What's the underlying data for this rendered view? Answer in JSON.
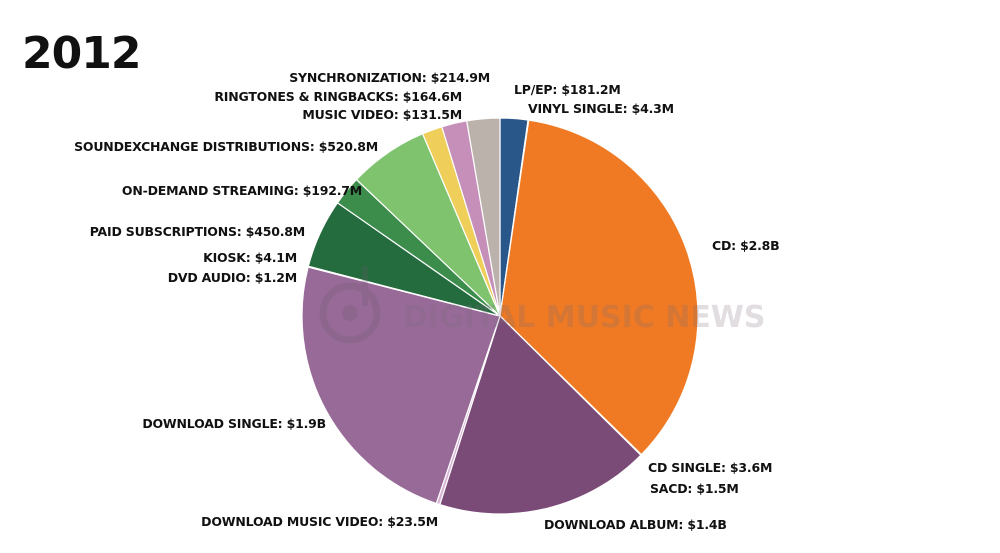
{
  "chart_data": {
    "type": "pie",
    "title": "2012",
    "slices": [
      {
        "label": "LP/EP: $181.2M",
        "value": 181.2,
        "color": "#2a578a"
      },
      {
        "label": "VINYL SINGLE: $4.3M",
        "value": 4.3,
        "color": "#3a74b0"
      },
      {
        "label": "CD: $2.8B",
        "value": 2800,
        "color": "#ef7a23"
      },
      {
        "label": "CD SINGLE: $3.6M",
        "value": 3.6,
        "color": "#d7732c"
      },
      {
        "label": "SACD: $1.5M",
        "value": 1.5,
        "color": "#c4682a"
      },
      {
        "label": "DOWNLOAD ALBUM: $1.4B",
        "value": 1400,
        "color": "#7a4b77"
      },
      {
        "label": "DOWNLOAD MUSIC VIDEO: $23.5M",
        "value": 23.5,
        "color": "#d8b3d6"
      },
      {
        "label": "DOWNLOAD SINGLE: $1.9B",
        "value": 1900,
        "color": "#986a98"
      },
      {
        "label": "DVD AUDIO: $1.2M",
        "value": 1.2,
        "color": "#8c6448"
      },
      {
        "label": "KIOSK: $4.1M",
        "value": 4.1,
        "color": "#9a6a4c"
      },
      {
        "label": "PAID SUBSCRIPTIONS: $450.8M",
        "value": 450.8,
        "color": "#246b3e"
      },
      {
        "label": "ON-DEMAND STREAMING: $192.7M",
        "value": 192.7,
        "color": "#3c8c4c"
      },
      {
        "label": "SOUNDEXCHANGE DISTRIBUTIONS: $520.8M",
        "value": 520.8,
        "color": "#7fc36e"
      },
      {
        "label": "MUSIC VIDEO: $131.5M",
        "value": 131.5,
        "color": "#efcf5a"
      },
      {
        "label": "RINGTONES & RINGBACKS: $164.6M",
        "value": 164.6,
        "color": "#c58fb9"
      },
      {
        "label": "SYNCHRONIZATION: $214.9M",
        "value": 214.9,
        "color": "#bbb2ab"
      }
    ],
    "start": "12 o'clock",
    "direction": "clockwise",
    "legend": "none",
    "labels": "outside"
  },
  "watermark": {
    "text": "DIGITAL MUSIC NEWS"
  }
}
